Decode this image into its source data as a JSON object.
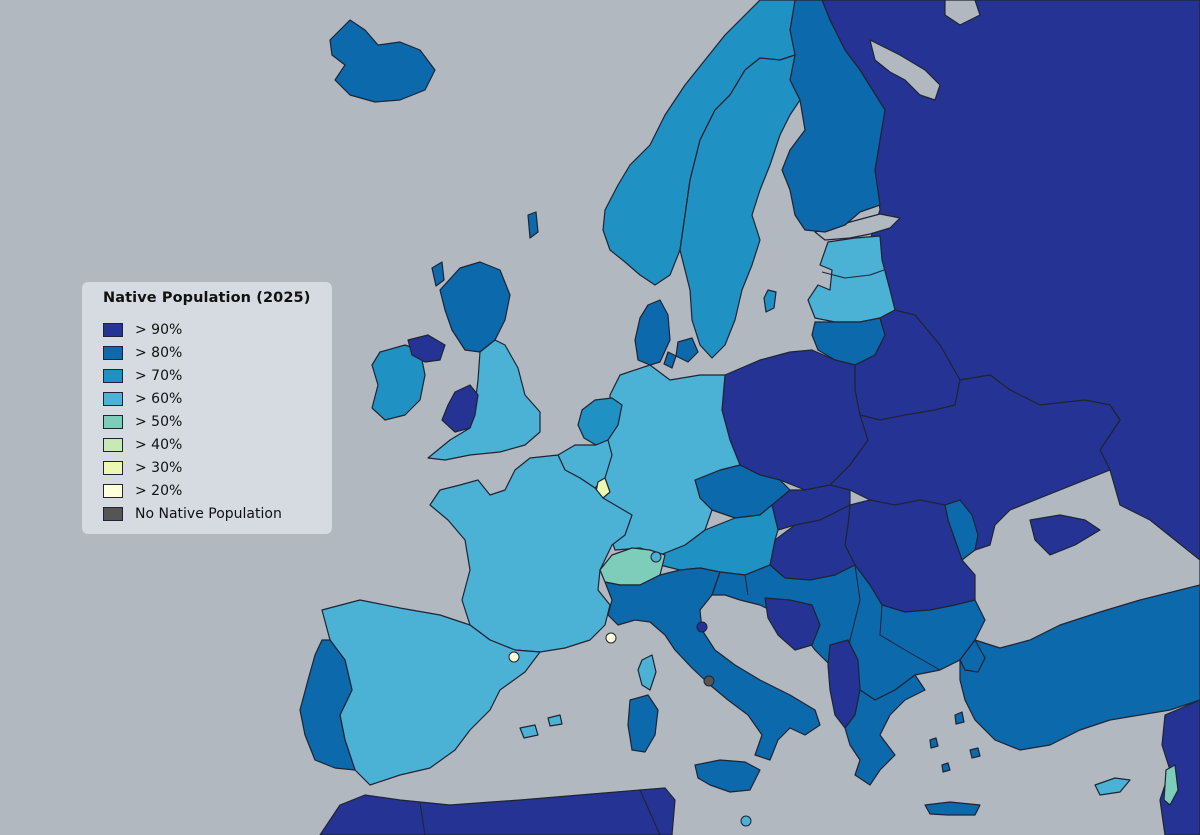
{
  "legend": {
    "title": "Native Population (2025)",
    "items": [
      {
        "label": "> 90%",
        "color": "#253494"
      },
      {
        "label": "> 80%",
        "color": "#0c69ac"
      },
      {
        "label": "> 70%",
        "color": "#1f91c3"
      },
      {
        "label": "> 60%",
        "color": "#4bb1d5"
      },
      {
        "label": "> 50%",
        "color": "#7ecdbb"
      },
      {
        "label": "> 40%",
        "color": "#c7e9b4"
      },
      {
        "label": "> 30%",
        "color": "#edf8b1"
      },
      {
        "label": "> 20%",
        "color": "#ffffd9"
      },
      {
        "label": "No Native Population",
        "color": "#555555"
      }
    ]
  },
  "colors": {
    "sea": "#b2b8c0",
    "non_eu_land": "#b2b8c0",
    "border": "#1e2433"
  },
  "regions": [
    {
      "name": "russia",
      "class": "> 90%"
    },
    {
      "name": "belarus",
      "class": "> 90%"
    },
    {
      "name": "ukraine",
      "class": "> 90%"
    },
    {
      "name": "poland",
      "class": "> 90%"
    },
    {
      "name": "romania",
      "class": "> 90%"
    },
    {
      "name": "hungary",
      "class": "> 90%"
    },
    {
      "name": "slovakia",
      "class": "> 90%"
    },
    {
      "name": "wales",
      "class": "> 90%"
    },
    {
      "name": "northern-ireland",
      "class": "> 90%"
    },
    {
      "name": "bosnia",
      "class": "> 90%"
    },
    {
      "name": "montenegro-albania",
      "class": "> 90%"
    },
    {
      "name": "north-africa",
      "class": "> 90%"
    },
    {
      "name": "near-east",
      "class": "> 90%"
    },
    {
      "name": "iceland",
      "class": "> 80%"
    },
    {
      "name": "scotland",
      "class": "> 80%"
    },
    {
      "name": "finland",
      "class": "> 80%"
    },
    {
      "name": "czechia",
      "class": "> 80%"
    },
    {
      "name": "lithuania",
      "class": "> 80%"
    },
    {
      "name": "denmark",
      "class": "> 80%"
    },
    {
      "name": "portugal",
      "class": "> 80%"
    },
    {
      "name": "italy",
      "class": "> 80%"
    },
    {
      "name": "balkans",
      "class": "> 80%"
    },
    {
      "name": "greece",
      "class": "> 80%"
    },
    {
      "name": "turkey",
      "class": "> 80%"
    },
    {
      "name": "moldova",
      "class": "> 80%"
    },
    {
      "name": "norway",
      "class": "> 70%"
    },
    {
      "name": "sweden",
      "class": "> 70%"
    },
    {
      "name": "austria",
      "class": "> 70%"
    },
    {
      "name": "netherlands",
      "class": "> 70%"
    },
    {
      "name": "ireland",
      "class": "> 70%"
    },
    {
      "name": "france",
      "class": "> 60%"
    },
    {
      "name": "spain",
      "class": "> 60%"
    },
    {
      "name": "germany",
      "class": "> 60%"
    },
    {
      "name": "england",
      "class": "> 60%"
    },
    {
      "name": "belgium",
      "class": "> 60%"
    },
    {
      "name": "estonia-latvia",
      "class": "> 60%"
    },
    {
      "name": "switzerland",
      "class": "> 50%"
    },
    {
      "name": "luxembourg",
      "class": "> 30%"
    },
    {
      "name": "andorra",
      "class": "> 20%"
    },
    {
      "name": "monaco",
      "class": "> 20%"
    },
    {
      "name": "vatican",
      "class": "No Native Population"
    }
  ]
}
